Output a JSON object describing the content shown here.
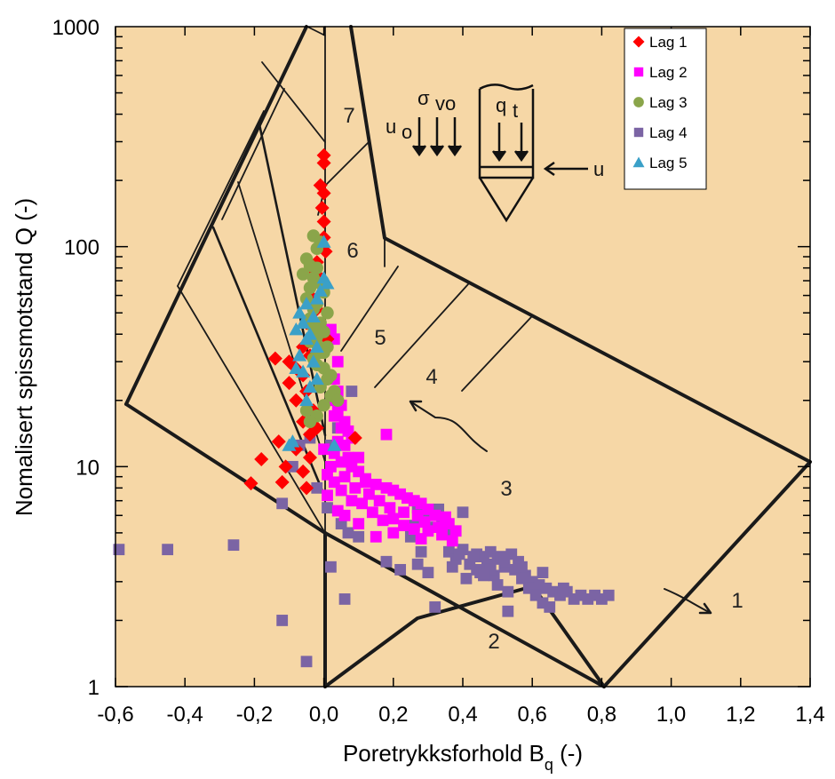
{
  "chart_data": {
    "type": "scatter",
    "title": "",
    "xlabel": "Poretrykksforhold B",
    "xlabel_sub": "q",
    "xlabel_suffix": " (-)",
    "ylabel": "Nomalisert spissmotstand Q (-)",
    "xlim": [
      -0.6,
      1.4
    ],
    "ylim": [
      1,
      1000
    ],
    "yscale": "log",
    "x_tick_labels": [
      "-0,6",
      "-0,4",
      "-0,2",
      "0,0",
      "0,2",
      "0,4",
      "0,6",
      "0,8",
      "1,0",
      "1,2",
      "1,4"
    ],
    "x_ticks": [
      -0.6,
      -0.4,
      -0.2,
      0.0,
      0.2,
      0.4,
      0.6,
      0.8,
      1.0,
      1.2,
      1.4
    ],
    "y_tick_labels": [
      "1",
      "10",
      "100",
      "1000"
    ],
    "y_ticks": [
      1,
      10,
      100,
      1000
    ],
    "legend_position": "top-right",
    "background": {
      "zone_labels": [
        "1",
        "2",
        "3",
        "4",
        "5",
        "6",
        "7"
      ],
      "inset_labels": [
        "u",
        "o",
        "σ",
        "vo",
        "q",
        "t",
        "u"
      ]
    },
    "series": [
      {
        "name": "Lag 1",
        "marker": "diamond",
        "color": "#ff0000",
        "points": [
          [
            0.0,
            260
          ],
          [
            0.0,
            240
          ],
          [
            -0.01,
            190
          ],
          [
            0.0,
            175
          ],
          [
            -0.005,
            150
          ],
          [
            0.0,
            130
          ],
          [
            0.0,
            110
          ],
          [
            0.005,
            95
          ],
          [
            -0.02,
            85
          ],
          [
            -0.03,
            78
          ],
          [
            -0.01,
            72
          ],
          [
            0.0,
            65
          ],
          [
            -0.04,
            60
          ],
          [
            -0.02,
            52
          ],
          [
            -0.05,
            45
          ],
          [
            -0.03,
            40
          ],
          [
            0.01,
            38
          ],
          [
            -0.06,
            35
          ],
          [
            -0.04,
            32
          ],
          [
            -0.14,
            31
          ],
          [
            -0.1,
            30
          ],
          [
            -0.08,
            28
          ],
          [
            -0.06,
            26
          ],
          [
            -0.1,
            24
          ],
          [
            -0.05,
            22
          ],
          [
            -0.08,
            20
          ],
          [
            -0.03,
            18
          ],
          [
            -0.06,
            16
          ],
          [
            -0.02,
            15
          ],
          [
            -0.04,
            14
          ],
          [
            0.09,
            13.5
          ],
          [
            -0.13,
            13
          ],
          [
            -0.08,
            12
          ],
          [
            -0.04,
            11
          ],
          [
            -0.18,
            10.8
          ],
          [
            -0.11,
            10
          ],
          [
            -0.06,
            9.5
          ],
          [
            -0.21,
            8.4
          ],
          [
            -0.12,
            8.5
          ],
          [
            -0.05,
            8
          ]
        ]
      },
      {
        "name": "Lag 2",
        "marker": "square",
        "color": "#ff00ff",
        "points": [
          [
            0.02,
            42
          ],
          [
            0.03,
            38
          ],
          [
            0.04,
            30
          ],
          [
            0.03,
            25
          ],
          [
            0.04,
            22
          ],
          [
            0.02,
            20
          ],
          [
            0.05,
            19
          ],
          [
            0.04,
            18
          ],
          [
            0.03,
            17
          ],
          [
            0.06,
            16
          ],
          [
            0.05,
            15
          ],
          [
            0.07,
            14.5
          ],
          [
            0.08,
            13.5
          ],
          [
            0.04,
            13
          ],
          [
            0.06,
            12.5
          ],
          [
            0.0,
            12
          ],
          [
            0.03,
            11.5
          ],
          [
            0.07,
            11
          ],
          [
            0.1,
            11
          ],
          [
            0.05,
            10.5
          ],
          [
            0.08,
            10
          ],
          [
            0.02,
            10
          ],
          [
            0.1,
            9.5
          ],
          [
            0.06,
            9
          ],
          [
            0.03,
            8.5
          ],
          [
            0.12,
            8.5
          ],
          [
            0.15,
            8.3
          ],
          [
            0.18,
            8
          ],
          [
            0.09,
            8
          ],
          [
            0.05,
            7.8
          ],
          [
            0.2,
            7.8
          ],
          [
            0.22,
            7.5
          ],
          [
            0.13,
            7.5
          ],
          [
            0.01,
            7.4
          ],
          [
            0.24,
            7.2
          ],
          [
            0.16,
            7
          ],
          [
            0.26,
            7
          ],
          [
            0.08,
            7
          ],
          [
            0.28,
            6.8
          ],
          [
            0.11,
            6.8
          ],
          [
            0.19,
            6.5
          ],
          [
            0.3,
            6.4
          ],
          [
            0.04,
            6.3
          ],
          [
            0.23,
            6.2
          ],
          [
            0.14,
            6.2
          ],
          [
            0.32,
            6
          ],
          [
            0.27,
            6
          ],
          [
            0.06,
            6
          ],
          [
            0.35,
            5.9
          ],
          [
            0.2,
            5.8
          ],
          [
            0.17,
            5.7
          ],
          [
            0.29,
            5.6
          ],
          [
            0.36,
            5.5
          ],
          [
            0.1,
            5.5
          ],
          [
            0.23,
            5.4
          ],
          [
            0.33,
            5.3
          ],
          [
            0.26,
            5.2
          ],
          [
            0.3,
            5.1
          ],
          [
            0.38,
            5.1
          ],
          [
            0.2,
            5
          ],
          [
            0.34,
            4.9
          ],
          [
            0.15,
            4.8
          ],
          [
            0.28,
            4.7
          ],
          [
            0.37,
            4.6
          ],
          [
            0.18,
            14
          ],
          [
            0.12,
            8.8
          ],
          [
            0.07,
            10.5
          ],
          [
            0.01,
            9.2
          ]
        ]
      },
      {
        "name": "Lag 3",
        "marker": "circle",
        "color": "#8aa54a",
        "points": [
          [
            -0.03,
            112
          ],
          [
            -0.01,
            105
          ],
          [
            -0.02,
            98
          ],
          [
            -0.05,
            88
          ],
          [
            -0.04,
            82
          ],
          [
            -0.02,
            80
          ],
          [
            -0.06,
            75
          ],
          [
            -0.03,
            72
          ],
          [
            -0.01,
            68
          ],
          [
            -0.04,
            65
          ],
          [
            0.0,
            62
          ],
          [
            -0.05,
            58
          ],
          [
            -0.02,
            55
          ],
          [
            -0.03,
            52
          ],
          [
            0.01,
            50
          ],
          [
            -0.04,
            47
          ],
          [
            -0.01,
            45
          ],
          [
            -0.03,
            43
          ],
          [
            0.0,
            41
          ],
          [
            -0.02,
            39
          ],
          [
            -0.04,
            37
          ],
          [
            0.01,
            35
          ],
          [
            -0.01,
            33
          ],
          [
            -0.03,
            31
          ],
          [
            -0.02,
            29
          ],
          [
            0.0,
            28
          ],
          [
            0.02,
            26
          ],
          [
            0.01,
            25
          ],
          [
            -0.01,
            23
          ],
          [
            0.03,
            22
          ],
          [
            0.02,
            21
          ],
          [
            0.04,
            20
          ],
          [
            0.0,
            19
          ],
          [
            -0.05,
            18
          ],
          [
            -0.02,
            17
          ],
          [
            -0.04,
            16
          ],
          [
            0.0,
            33
          ],
          [
            -0.02,
            36
          ]
        ]
      },
      {
        "name": "Lag 4",
        "marker": "square",
        "color": "#7b64a4",
        "points": [
          [
            -0.59,
            4.2
          ],
          [
            -0.45,
            4.2
          ],
          [
            -0.26,
            4.4
          ],
          [
            -0.12,
            2.0
          ],
          [
            -0.05,
            1.3
          ],
          [
            -0.12,
            6.8
          ],
          [
            -0.07,
            12.5
          ],
          [
            -0.09,
            10
          ],
          [
            -0.04,
            13.5
          ],
          [
            -0.02,
            8
          ],
          [
            0.01,
            6.5
          ],
          [
            0.02,
            3.5
          ],
          [
            0.05,
            5.5
          ],
          [
            0.07,
            5
          ],
          [
            0.06,
            2.5
          ],
          [
            0.1,
            4.8
          ],
          [
            0.02,
            12.5
          ],
          [
            0.04,
            15
          ],
          [
            0.08,
            22
          ],
          [
            0.18,
            3.7
          ],
          [
            0.22,
            3.4
          ],
          [
            0.25,
            4.8
          ],
          [
            0.27,
            3.6
          ],
          [
            0.3,
            3.3
          ],
          [
            0.32,
            2.3
          ],
          [
            0.34,
            5.8
          ],
          [
            0.36,
            4.1
          ],
          [
            0.38,
            3.8
          ],
          [
            0.4,
            6.2
          ],
          [
            0.42,
            3.6
          ],
          [
            0.44,
            3.4
          ],
          [
            0.46,
            3.9
          ],
          [
            0.48,
            4.1
          ],
          [
            0.5,
            3.8
          ],
          [
            0.52,
            3.5
          ],
          [
            0.54,
            4.0
          ],
          [
            0.56,
            3.7
          ],
          [
            0.58,
            3.2
          ],
          [
            0.6,
            3.0
          ],
          [
            0.62,
            2.9
          ],
          [
            0.64,
            2.8
          ],
          [
            0.66,
            2.7
          ],
          [
            0.68,
            2.6
          ],
          [
            0.7,
            2.7
          ],
          [
            0.72,
            2.5
          ],
          [
            0.74,
            2.6
          ],
          [
            0.76,
            2.5
          ],
          [
            0.78,
            2.6
          ],
          [
            0.8,
            2.5
          ],
          [
            0.82,
            2.6
          ],
          [
            0.45,
            3.3
          ],
          [
            0.47,
            3.6
          ],
          [
            0.49,
            3.2
          ],
          [
            0.51,
            3.9
          ],
          [
            0.53,
            2.7
          ],
          [
            0.55,
            3.4
          ],
          [
            0.57,
            3.1
          ],
          [
            0.59,
            2.8
          ],
          [
            0.61,
            2.6
          ],
          [
            0.63,
            2.4
          ],
          [
            0.65,
            2.3
          ],
          [
            0.53,
            2.2
          ],
          [
            0.57,
            3.5
          ],
          [
            0.63,
            3.3
          ],
          [
            0.69,
            2.8
          ],
          [
            0.5,
            2.9
          ],
          [
            0.4,
            4.2
          ],
          [
            0.44,
            4.0
          ],
          [
            0.48,
            3.4
          ],
          [
            0.52,
            3.7
          ],
          [
            0.41,
            3.1
          ],
          [
            0.43,
            3.9
          ],
          [
            0.46,
            3.2
          ],
          [
            0.39,
            4.0
          ],
          [
            0.37,
            3.5
          ],
          [
            0.35,
            5.1
          ],
          [
            0.33,
            6.4
          ],
          [
            0.31,
            6.1
          ],
          [
            0.29,
            6.3
          ],
          [
            0.27,
            6.5
          ],
          [
            0.3,
            5.3
          ],
          [
            0.28,
            4.1
          ],
          [
            0.26,
            5.4
          ]
        ]
      },
      {
        "name": "Lag 5",
        "marker": "triangle",
        "color": "#3aa0c8",
        "points": [
          [
            0.0,
            105
          ],
          [
            0.0,
            72
          ],
          [
            0.01,
            68
          ],
          [
            -0.01,
            63
          ],
          [
            -0.02,
            58
          ],
          [
            -0.05,
            55
          ],
          [
            -0.07,
            50
          ],
          [
            -0.03,
            48
          ],
          [
            -0.06,
            45
          ],
          [
            -0.08,
            42
          ],
          [
            -0.04,
            40
          ],
          [
            -0.05,
            38
          ],
          [
            -0.02,
            35
          ],
          [
            -0.07,
            32
          ],
          [
            -0.03,
            30
          ],
          [
            -0.08,
            28
          ],
          [
            -0.06,
            27
          ],
          [
            -0.02,
            25
          ],
          [
            -0.04,
            23
          ],
          [
            -0.05,
            20
          ],
          [
            0.03,
            12.5
          ],
          [
            -0.1,
            12.5
          ],
          [
            -0.09,
            13
          ]
        ]
      }
    ]
  }
}
